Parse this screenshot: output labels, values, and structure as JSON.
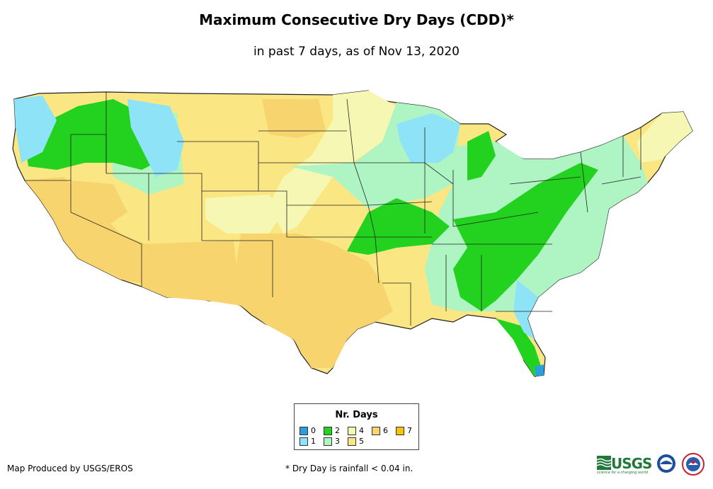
{
  "title": "Maximum Consecutive Dry Days (CDD)*",
  "subtitle": "in past 7 days, as of Nov 13, 2020",
  "legend": {
    "title": "Nr. Days",
    "items": [
      {
        "label": "0",
        "color": "#2a9fe0"
      },
      {
        "label": "1",
        "color": "#8ee4f6"
      },
      {
        "label": "2",
        "color": "#22d21e"
      },
      {
        "label": "3",
        "color": "#aff5c3"
      },
      {
        "label": "4",
        "color": "#f7f7b4"
      },
      {
        "label": "5",
        "color": "#fbe684"
      },
      {
        "label": "6",
        "color": "#f7d46e"
      },
      {
        "label": "7",
        "color": "#f7c40a"
      }
    ]
  },
  "footer": {
    "credit": "Map Produced by USGS/EROS",
    "note": "* Dry Day is rainfall < 0.04 in."
  },
  "logos": {
    "usgs": "USGS",
    "usgs_tagline": "science for a changing world",
    "noaa": "noaa",
    "nws": "NWS"
  },
  "icons": [
    "usgs-logo-icon",
    "noaa-logo-icon",
    "nws-logo-icon"
  ]
}
